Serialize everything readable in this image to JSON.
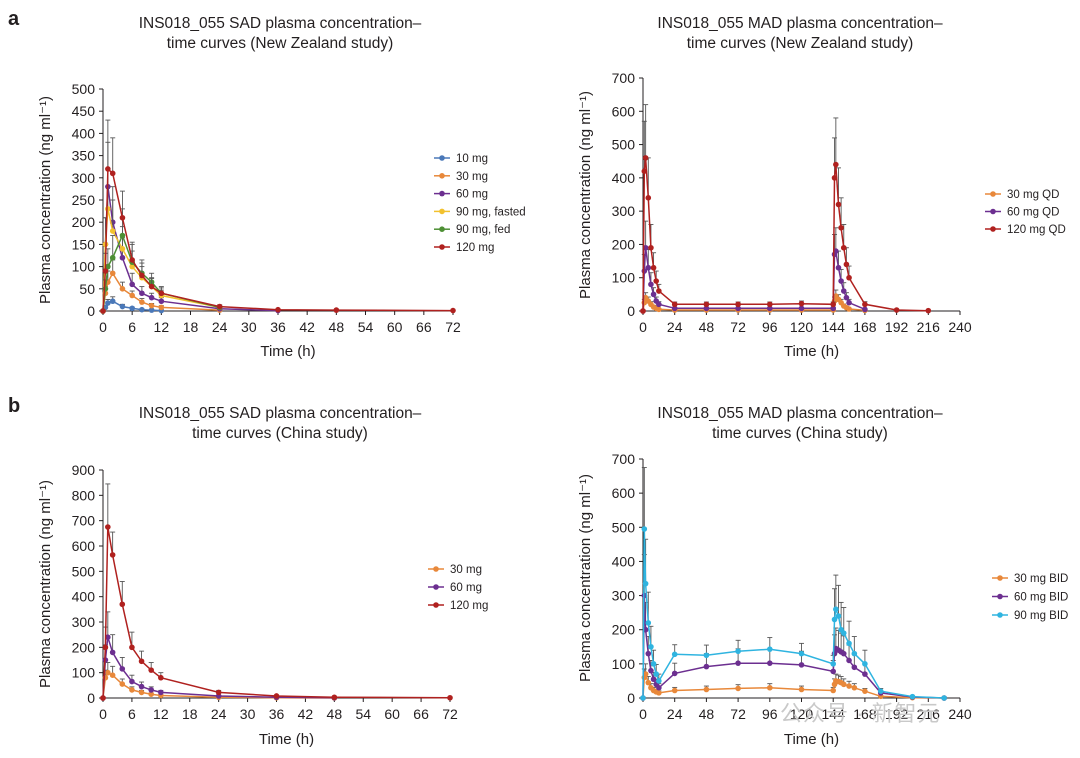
{
  "panels": {
    "a": "a",
    "b": "b"
  },
  "watermark": "公众号 · 新智元",
  "colors": {
    "10 mg": "#4a78b8",
    "30 mg": "#e8883a",
    "60 mg": "#6c2f90",
    "90 mg, fasted": "#f2c12e",
    "90 mg, fed": "#4d8f34",
    "120 mg": "#b0211f",
    "30 mg QD": "#e8883a",
    "60 mg QD": "#6c2f90",
    "120 mg QD": "#b0211f",
    "30 mg BID": "#e8883a",
    "60 mg BID": "#6c2f90",
    "90 mg BID": "#2fb4e0"
  },
  "chart_data": [
    {
      "type": "line",
      "title": "INS018_055 SAD plasma concentration–time curves (New Zealand study)",
      "title_lines": [
        "INS018_055 SAD plasma concentration–",
        "time curves (New Zealand study)"
      ],
      "xlabel": "Time (h)",
      "ylabel": "Plasma concentration (ng ml⁻¹)",
      "xlim": [
        0,
        72
      ],
      "ylim": [
        0,
        500
      ],
      "xticks": [
        0,
        6,
        12,
        18,
        24,
        30,
        36,
        42,
        48,
        54,
        60,
        66,
        72
      ],
      "yticks": [
        0,
        50,
        100,
        150,
        200,
        250,
        300,
        350,
        400,
        450,
        500
      ],
      "legend_position": "right",
      "series": [
        {
          "name": "10 mg",
          "x": [
            0,
            0.5,
            1,
            2,
            4,
            6,
            8,
            10,
            12
          ],
          "y": [
            0,
            8,
            18,
            22,
            10,
            6,
            3,
            2,
            1
          ],
          "err": [
            0,
            4,
            8,
            10,
            5,
            3,
            2,
            1,
            1
          ]
        },
        {
          "name": "30 mg",
          "x": [
            0,
            0.5,
            1,
            2,
            4,
            6,
            8,
            10,
            12,
            24
          ],
          "y": [
            0,
            40,
            65,
            85,
            50,
            35,
            20,
            12,
            8,
            2
          ],
          "err": [
            0,
            15,
            25,
            30,
            15,
            10,
            8,
            5,
            4,
            1
          ]
        },
        {
          "name": "60 mg",
          "x": [
            0,
            0.5,
            1,
            2,
            4,
            6,
            8,
            10,
            12,
            24,
            36
          ],
          "y": [
            0,
            150,
            280,
            200,
            120,
            60,
            40,
            30,
            22,
            5,
            1
          ],
          "err": [
            0,
            60,
            100,
            80,
            45,
            25,
            15,
            10,
            8,
            2,
            1
          ]
        },
        {
          "name": "90 mg, fasted",
          "x": [
            0,
            0.5,
            1,
            2,
            4,
            6,
            8,
            10,
            12,
            24
          ],
          "y": [
            0,
            150,
            230,
            180,
            140,
            100,
            75,
            55,
            35,
            8
          ],
          "err": [
            0,
            60,
            90,
            70,
            50,
            35,
            25,
            18,
            12,
            3
          ]
        },
        {
          "name": "90 mg, fed",
          "x": [
            0,
            0.5,
            1,
            2,
            4,
            6,
            8,
            10,
            12,
            24
          ],
          "y": [
            0,
            50,
            100,
            120,
            170,
            110,
            85,
            65,
            40,
            8
          ],
          "err": [
            0,
            20,
            40,
            50,
            60,
            40,
            30,
            20,
            12,
            3
          ]
        },
        {
          "name": "120 mg",
          "x": [
            0,
            0.5,
            1,
            2,
            4,
            6,
            8,
            10,
            12,
            24,
            36,
            48,
            72
          ],
          "y": [
            0,
            90,
            320,
            310,
            210,
            115,
            80,
            55,
            40,
            10,
            3,
            2,
            1
          ],
          "err": [
            0,
            40,
            110,
            80,
            60,
            40,
            28,
            20,
            15,
            4,
            1,
            1,
            0
          ]
        }
      ]
    },
    {
      "type": "line",
      "title": "INS018_055 MAD plasma concentration–time curves (New Zealand study)",
      "title_lines": [
        "INS018_055 MAD plasma concentration–",
        "time curves (New Zealand study)"
      ],
      "xlabel": "Time (h)",
      "ylabel": "Plasma concentration (ng ml⁻¹)",
      "xlim": [
        0,
        240
      ],
      "ylim": [
        0,
        700
      ],
      "xticks": [
        0,
        24,
        48,
        72,
        96,
        120,
        144,
        168,
        192,
        216,
        240
      ],
      "yticks": [
        0,
        100,
        200,
        300,
        400,
        500,
        600,
        700
      ],
      "legend_position": "right",
      "series": [
        {
          "name": "30 mg QD",
          "x": [
            0,
            1,
            2,
            4,
            6,
            8,
            10,
            12,
            24,
            48,
            72,
            96,
            120,
            144,
            145,
            146,
            148,
            150,
            152,
            154,
            156,
            168
          ],
          "y": [
            0,
            25,
            40,
            30,
            20,
            12,
            8,
            5,
            3,
            3,
            3,
            3,
            3,
            3,
            30,
            45,
            35,
            25,
            15,
            10,
            6,
            2
          ],
          "err": [
            0,
            10,
            15,
            12,
            8,
            5,
            3,
            2,
            1,
            1,
            1,
            1,
            1,
            1,
            12,
            18,
            14,
            10,
            6,
            4,
            2,
            1
          ]
        },
        {
          "name": "60 mg QD",
          "x": [
            0,
            1,
            2,
            4,
            6,
            8,
            10,
            12,
            24,
            48,
            72,
            96,
            120,
            144,
            145,
            146,
            148,
            150,
            152,
            154,
            156,
            168
          ],
          "y": [
            0,
            120,
            190,
            130,
            80,
            50,
            30,
            20,
            8,
            8,
            8,
            8,
            8,
            8,
            170,
            180,
            130,
            90,
            60,
            40,
            25,
            5
          ],
          "err": [
            0,
            50,
            80,
            55,
            35,
            20,
            12,
            8,
            3,
            3,
            3,
            3,
            3,
            3,
            60,
            70,
            50,
            35,
            25,
            15,
            10,
            2
          ]
        },
        {
          "name": "120 mg QD",
          "x": [
            0,
            1,
            2,
            4,
            6,
            8,
            10,
            12,
            24,
            48,
            72,
            96,
            120,
            144,
            145,
            146,
            148,
            150,
            152,
            154,
            156,
            168,
            192,
            216
          ],
          "y": [
            0,
            420,
            460,
            340,
            190,
            130,
            90,
            60,
            20,
            20,
            20,
            20,
            22,
            20,
            400,
            440,
            320,
            250,
            190,
            140,
            100,
            20,
            3,
            1
          ],
          "err": [
            0,
            150,
            160,
            120,
            70,
            45,
            30,
            20,
            7,
            7,
            7,
            7,
            8,
            7,
            120,
            140,
            110,
            90,
            70,
            50,
            35,
            8,
            1,
            0
          ]
        }
      ]
    },
    {
      "type": "line",
      "title": "INS018_055 SAD plasma concentration–time curves (China study)",
      "title_lines": [
        "INS018_055 SAD plasma concentration–",
        "time curves (China study)"
      ],
      "xlabel": "Time (h)",
      "ylabel": "Plasma concentration (ng ml⁻¹)",
      "xlim": [
        0,
        72
      ],
      "ylim": [
        0,
        900
      ],
      "xticks": [
        0,
        6,
        12,
        18,
        24,
        30,
        36,
        42,
        48,
        54,
        60,
        66,
        72
      ],
      "yticks": [
        0,
        100,
        200,
        300,
        400,
        500,
        600,
        700,
        800,
        900
      ],
      "legend_position": "right",
      "series": [
        {
          "name": "30 mg",
          "x": [
            0,
            0.5,
            1,
            2,
            4,
            6,
            8,
            10,
            12,
            24,
            36,
            48
          ],
          "y": [
            0,
            80,
            100,
            90,
            55,
            32,
            22,
            15,
            10,
            3,
            1,
            0
          ],
          "err": [
            0,
            30,
            40,
            35,
            20,
            12,
            8,
            5,
            4,
            1,
            0,
            0
          ]
        },
        {
          "name": "60 mg",
          "x": [
            0,
            0.5,
            1,
            2,
            4,
            6,
            8,
            10,
            12,
            24,
            36,
            48
          ],
          "y": [
            0,
            150,
            240,
            180,
            115,
            65,
            45,
            32,
            22,
            8,
            3,
            1
          ],
          "err": [
            0,
            60,
            100,
            70,
            45,
            25,
            18,
            12,
            8,
            3,
            1,
            0
          ]
        },
        {
          "name": "120 mg",
          "x": [
            0,
            0.5,
            1,
            2,
            4,
            6,
            8,
            10,
            12,
            24,
            36,
            48,
            72
          ],
          "y": [
            0,
            200,
            675,
            565,
            370,
            200,
            145,
            110,
            80,
            22,
            8,
            3,
            1
          ],
          "err": [
            0,
            80,
            170,
            90,
            90,
            60,
            40,
            30,
            20,
            8,
            3,
            1,
            0
          ]
        }
      ]
    },
    {
      "type": "line",
      "title": "INS018_055 MAD plasma concentration–time curves (China study)",
      "title_lines": [
        "INS018_055 MAD plasma concentration–",
        "time curves (China study)"
      ],
      "xlabel": "Time (h)",
      "ylabel": "Plasma concentration (ng ml⁻¹)",
      "xlim": [
        0,
        240
      ],
      "ylim": [
        0,
        700
      ],
      "xticks": [
        0,
        24,
        48,
        72,
        96,
        120,
        144,
        168,
        192,
        216,
        240
      ],
      "yticks": [
        0,
        100,
        200,
        300,
        400,
        500,
        600,
        700
      ],
      "legend_position": "right",
      "series": [
        {
          "name": "30 mg BID",
          "x": [
            0,
            1,
            2,
            4,
            6,
            8,
            10,
            12,
            24,
            48,
            72,
            96,
            120,
            144,
            145,
            146,
            148,
            150,
            152,
            156,
            160,
            168,
            180,
            204,
            228
          ],
          "y": [
            0,
            60,
            70,
            45,
            30,
            22,
            18,
            15,
            22,
            25,
            28,
            30,
            25,
            22,
            40,
            50,
            48,
            45,
            40,
            35,
            30,
            20,
            5,
            1,
            0
          ],
          "err": [
            0,
            25,
            30,
            18,
            12,
            9,
            7,
            6,
            9,
            10,
            11,
            12,
            10,
            9,
            16,
            20,
            19,
            18,
            16,
            14,
            12,
            8,
            2,
            0,
            0
          ]
        },
        {
          "name": "60 mg BID",
          "x": [
            0,
            1,
            2,
            4,
            6,
            8,
            10,
            12,
            24,
            48,
            72,
            96,
            120,
            144,
            145,
            146,
            148,
            150,
            152,
            156,
            160,
            168,
            180,
            204,
            228
          ],
          "y": [
            0,
            300,
            200,
            130,
            80,
            55,
            40,
            30,
            72,
            92,
            102,
            102,
            97,
            78,
            130,
            145,
            140,
            135,
            130,
            110,
            90,
            70,
            15,
            3,
            0
          ],
          "err": [
            0,
            120,
            80,
            50,
            30,
            20,
            15,
            12,
            30,
            38,
            42,
            42,
            40,
            32,
            55,
            60,
            58,
            55,
            52,
            45,
            38,
            30,
            6,
            1,
            0
          ]
        },
        {
          "name": "90 mg BID",
          "x": [
            0,
            1,
            2,
            4,
            6,
            8,
            10,
            12,
            24,
            48,
            72,
            96,
            120,
            144,
            145,
            146,
            148,
            150,
            152,
            156,
            160,
            168,
            180,
            204,
            228
          ],
          "y": [
            0,
            495,
            335,
            220,
            150,
            100,
            70,
            50,
            128,
            125,
            137,
            143,
            130,
            100,
            230,
            260,
            240,
            200,
            190,
            160,
            130,
            100,
            20,
            4,
            0
          ],
          "err": [
            0,
            180,
            130,
            90,
            60,
            40,
            28,
            20,
            28,
            30,
            32,
            34,
            30,
            25,
            90,
            100,
            90,
            80,
            75,
            65,
            50,
            40,
            8,
            2,
            0
          ]
        }
      ]
    }
  ]
}
